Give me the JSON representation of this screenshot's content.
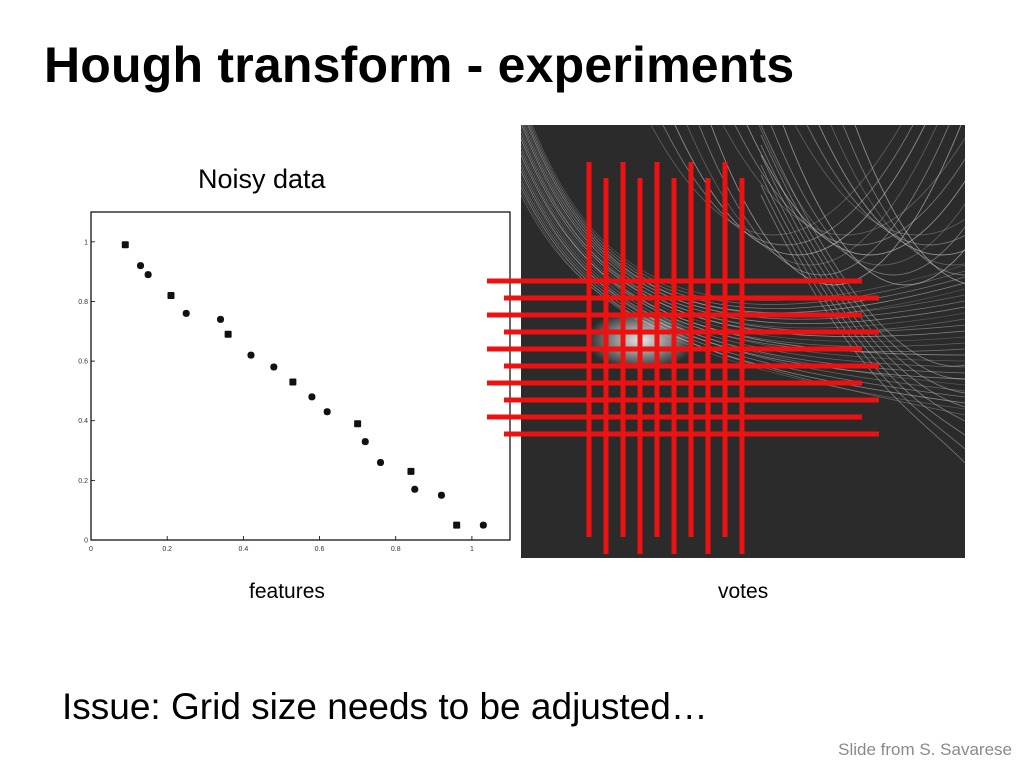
{
  "slide": {
    "title": "Hough transform - experiments",
    "plot_title": "Noisy data",
    "caption_left": "features",
    "caption_right": "votes",
    "issue": "Issue: Grid size needs to be adjusted…",
    "credit": "Slide from S. Savarese"
  },
  "colors": {
    "grid_overlay": "#ee1111",
    "votes_background": "#2b2b2b",
    "votes_curves": "#cfcfcf",
    "points": "#111111"
  },
  "chart_data": {
    "type": "scatter",
    "title": "",
    "xlabel": "",
    "ylabel": "",
    "xlim": [
      0,
      1.1
    ],
    "ylim": [
      0,
      1.1
    ],
    "xticks": [
      "0",
      "0.2",
      "0.4",
      "0.6",
      "0.8",
      "1"
    ],
    "yticks": [
      "0",
      "0.2",
      "0.4",
      "0.6",
      "0.8",
      "1"
    ],
    "grid": false,
    "series": [
      {
        "x": [
          0.09,
          0.13,
          0.15,
          0.21,
          0.25,
          0.34,
          0.36,
          0.42,
          0.48,
          0.53,
          0.58,
          0.62,
          0.7,
          0.72,
          0.76,
          0.84,
          0.85,
          0.92,
          0.96,
          1.03
        ],
        "y": [
          0.99,
          0.92,
          0.89,
          0.82,
          0.76,
          0.74,
          0.69,
          0.62,
          0.58,
          0.53,
          0.48,
          0.43,
          0.39,
          0.33,
          0.26,
          0.23,
          0.17,
          0.15,
          0.05,
          0.05
        ]
      }
    ]
  }
}
